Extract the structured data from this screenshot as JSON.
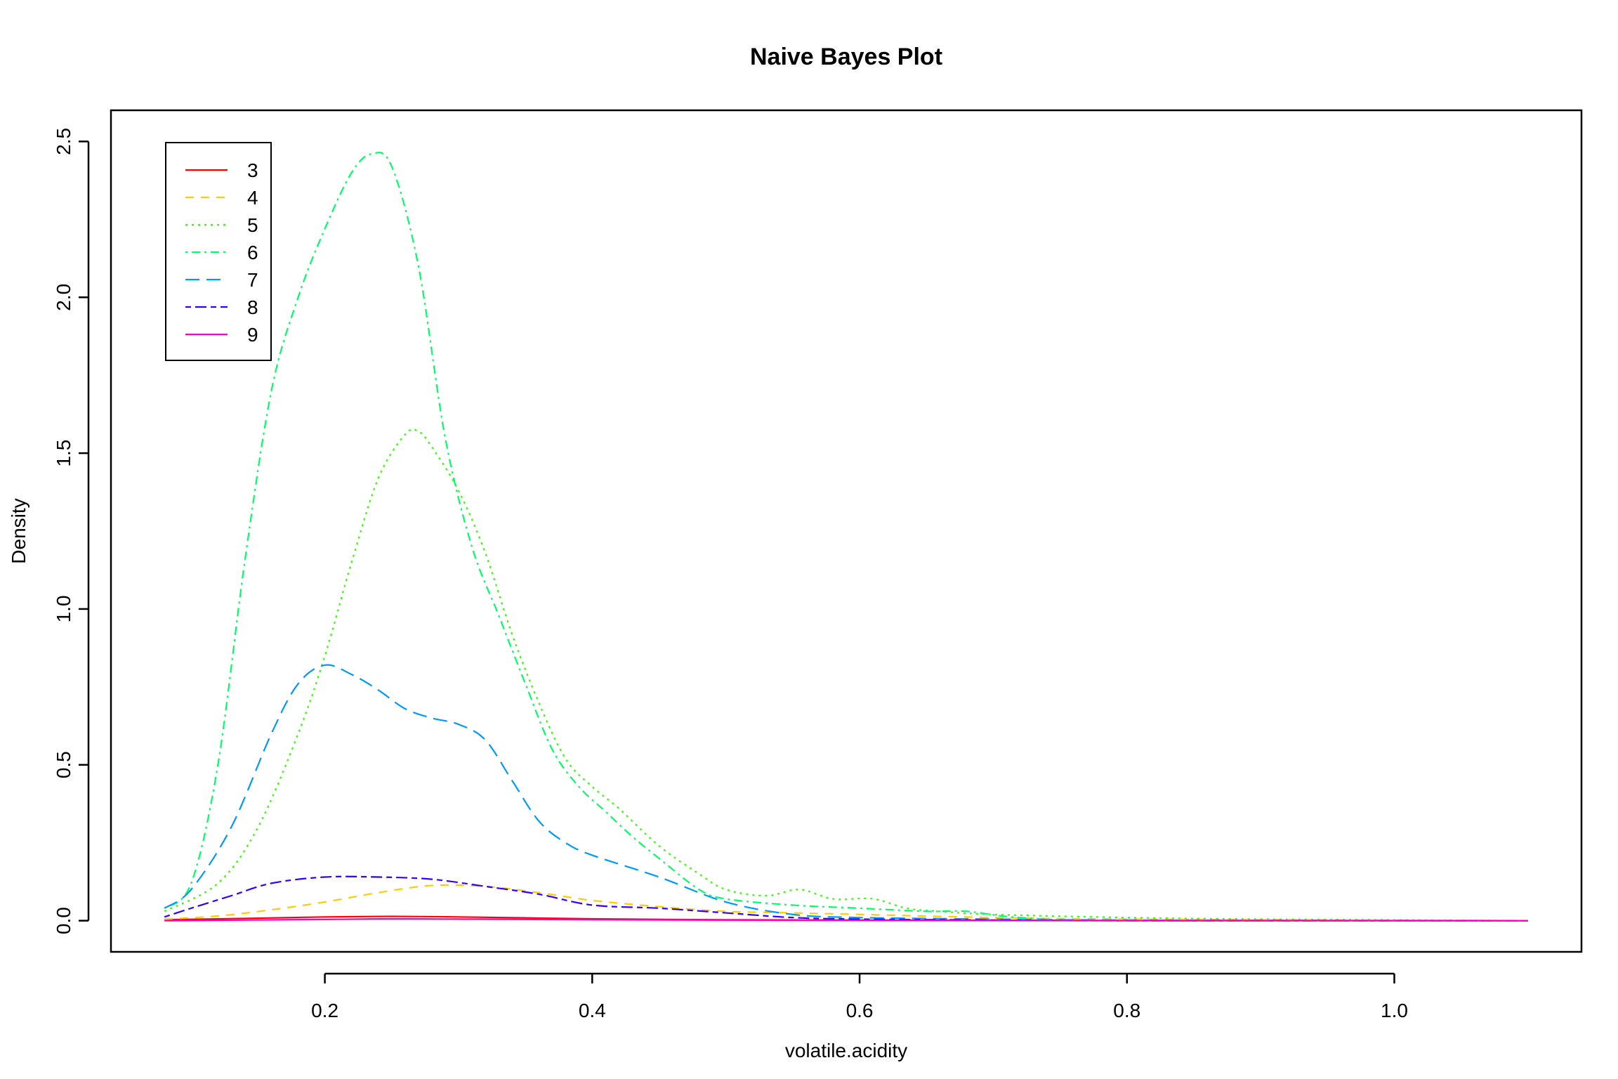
{
  "chart_data": {
    "type": "line",
    "title": "Naive Bayes Plot",
    "xlabel": "volatile.acidity",
    "ylabel": "Density",
    "xlim": [
      0.04,
      1.14
    ],
    "ylim": [
      -0.1,
      2.6
    ],
    "x_ticks": [
      {
        "value": 0.2,
        "label": "0.2"
      },
      {
        "value": 0.4,
        "label": "0.4"
      },
      {
        "value": 0.6,
        "label": "0.6"
      },
      {
        "value": 0.8,
        "label": "0.8"
      },
      {
        "value": 1.0,
        "label": "1.0"
      }
    ],
    "y_ticks": [
      {
        "value": 0.0,
        "label": "0.0"
      },
      {
        "value": 0.5,
        "label": "0.5"
      },
      {
        "value": 1.0,
        "label": "1.0"
      },
      {
        "value": 1.5,
        "label": "1.5"
      },
      {
        "value": 2.0,
        "label": "2.0"
      },
      {
        "value": 2.5,
        "label": "2.5"
      }
    ],
    "grid": false,
    "legend_position": "top-left",
    "series": [
      {
        "name": "3",
        "color": "#FF0000",
        "dash": "solid",
        "x": [
          0.08,
          0.15,
          0.2,
          0.25,
          0.3,
          0.35,
          0.4,
          0.5,
          0.6,
          0.8,
          1.1
        ],
        "y": [
          0.003,
          0.008,
          0.012,
          0.014,
          0.012,
          0.009,
          0.006,
          0.003,
          0.002,
          0.001,
          0.0
        ]
      },
      {
        "name": "4",
        "color": "#FFCC00",
        "dash": "dashed",
        "x": [
          0.08,
          0.12,
          0.16,
          0.2,
          0.24,
          0.28,
          0.32,
          0.36,
          0.4,
          0.45,
          0.5,
          0.55,
          0.6,
          0.7,
          0.8,
          1.1
        ],
        "y": [
          0.005,
          0.015,
          0.035,
          0.06,
          0.09,
          0.113,
          0.11,
          0.09,
          0.065,
          0.045,
          0.03,
          0.025,
          0.02,
          0.01,
          0.005,
          0.0
        ]
      },
      {
        "name": "5",
        "color": "#33FF00",
        "dash": "dotted",
        "x": [
          0.08,
          0.12,
          0.15,
          0.18,
          0.2,
          0.22,
          0.24,
          0.26,
          0.27,
          0.28,
          0.3,
          0.32,
          0.34,
          0.36,
          0.38,
          0.4,
          0.42,
          0.45,
          0.48,
          0.5,
          0.53,
          0.555,
          0.58,
          0.61,
          0.635,
          0.66,
          0.7,
          0.8,
          0.9,
          1.1
        ],
        "y": [
          0.03,
          0.12,
          0.3,
          0.6,
          0.85,
          1.15,
          1.42,
          1.56,
          1.57,
          1.52,
          1.38,
          1.18,
          0.92,
          0.7,
          0.52,
          0.43,
          0.36,
          0.24,
          0.15,
          0.1,
          0.08,
          0.1,
          0.07,
          0.07,
          0.04,
          0.03,
          0.02,
          0.01,
          0.005,
          0.0
        ]
      },
      {
        "name": "6",
        "color": "#00FF66",
        "dash": "dotdash",
        "x": [
          0.08,
          0.1,
          0.12,
          0.14,
          0.16,
          0.18,
          0.2,
          0.22,
          0.235,
          0.25,
          0.27,
          0.29,
          0.31,
          0.33,
          0.35,
          0.37,
          0.39,
          0.41,
          0.43,
          0.45,
          0.48,
          0.5,
          0.55,
          0.6,
          0.65,
          0.68,
          0.72,
          0.8,
          1.1
        ],
        "y": [
          0.04,
          0.12,
          0.5,
          1.15,
          1.7,
          2.0,
          2.22,
          2.4,
          2.46,
          2.42,
          2.1,
          1.55,
          1.2,
          0.98,
          0.76,
          0.55,
          0.43,
          0.35,
          0.27,
          0.2,
          0.1,
          0.07,
          0.05,
          0.04,
          0.03,
          0.03,
          0.01,
          0.0,
          0.0
        ]
      },
      {
        "name": "7",
        "color": "#0099FF",
        "dash": "longdash",
        "x": [
          0.08,
          0.1,
          0.13,
          0.16,
          0.18,
          0.2,
          0.22,
          0.24,
          0.26,
          0.28,
          0.3,
          0.32,
          0.34,
          0.36,
          0.38,
          0.4,
          0.45,
          0.5,
          0.55,
          0.6,
          0.7,
          0.8,
          1.1
        ],
        "y": [
          0.04,
          0.1,
          0.3,
          0.6,
          0.76,
          0.82,
          0.79,
          0.74,
          0.68,
          0.65,
          0.63,
          0.58,
          0.45,
          0.32,
          0.25,
          0.21,
          0.14,
          0.06,
          0.02,
          0.01,
          0.005,
          0.002,
          0.0
        ]
      },
      {
        "name": "8",
        "color": "#3300FF",
        "dash": "twodash",
        "x": [
          0.08,
          0.1,
          0.13,
          0.16,
          0.2,
          0.24,
          0.28,
          0.32,
          0.36,
          0.4,
          0.45,
          0.5,
          0.55,
          0.6,
          0.7,
          0.8,
          1.1
        ],
        "y": [
          0.012,
          0.04,
          0.08,
          0.12,
          0.14,
          0.14,
          0.133,
          0.11,
          0.085,
          0.05,
          0.04,
          0.025,
          0.01,
          0.005,
          0.002,
          0.0,
          0.0
        ]
      },
      {
        "name": "9",
        "color": "#FF00CC",
        "dash": "solid",
        "x": [
          0.08,
          0.2,
          0.25,
          0.3,
          0.4,
          0.6,
          0.8,
          1.1
        ],
        "y": [
          0.0,
          0.004,
          0.006,
          0.005,
          0.003,
          0.001,
          0.0,
          0.0
        ]
      }
    ]
  }
}
